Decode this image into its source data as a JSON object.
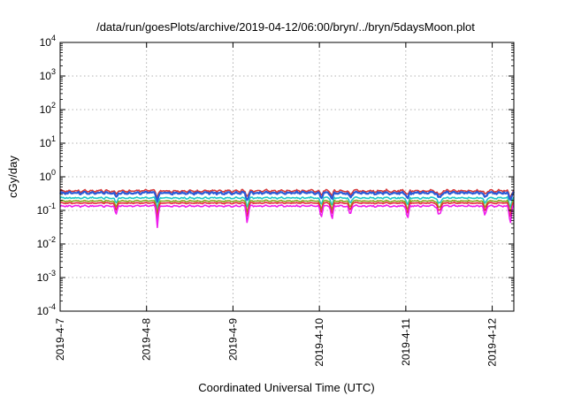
{
  "chart_data": {
    "type": "line",
    "title": "/data/run/goesPlots/archive/2019-04-12/06:00/bryn/../bryn/5daysMoon.plot",
    "xlabel": "Coordinated Universal Time (UTC)",
    "ylabel": "cGy/day",
    "y_scale": "log",
    "ylim": [
      0.0001,
      10000
    ],
    "y_ticks": [
      {
        "base": "10",
        "exp": "-4"
      },
      {
        "base": "10",
        "exp": "-3"
      },
      {
        "base": "10",
        "exp": "-2"
      },
      {
        "base": "10",
        "exp": "-1"
      },
      {
        "base": "10",
        "exp": "0"
      },
      {
        "base": "10",
        "exp": "1"
      },
      {
        "base": "10",
        "exp": "2"
      },
      {
        "base": "10",
        "exp": "3"
      },
      {
        "base": "10",
        "exp": "4"
      }
    ],
    "x_ticks": [
      "2019-4-7",
      "2019-4-8",
      "2019-4-9",
      "2019-4-10",
      "2019-4-11",
      "2019-4-12"
    ],
    "xlim": [
      "2019-04-07T00:00",
      "2019-04-12T06:00"
    ],
    "grid": true,
    "series": [
      {
        "color": "#d63a3a",
        "level": 0.38,
        "noise": 0.045
      },
      {
        "color": "#2a5ad8",
        "level": 0.33,
        "noise": 0.045
      },
      {
        "color": "#1ec8c8",
        "level": 0.235,
        "noise": 0.03
      },
      {
        "color": "#8aa61e",
        "level": 0.19,
        "noise": 0.025
      },
      {
        "color": "#e8283c",
        "level": 0.165,
        "noise": 0.02
      },
      {
        "color": "#ee1cee",
        "level": 0.135,
        "noise": 0.03
      }
    ],
    "dips": [
      {
        "t": "2019-04-07T15:30",
        "depth": 0.45
      },
      {
        "t": "2019-04-08T03:00",
        "depth": 0.7
      },
      {
        "t": "2019-04-09T04:00",
        "depth": 0.7
      },
      {
        "t": "2019-04-10T00:30",
        "depth": 0.55
      },
      {
        "t": "2019-04-10T03:30",
        "depth": 0.6
      },
      {
        "t": "2019-04-10T08:30",
        "depth": 0.45
      },
      {
        "t": "2019-04-11T00:30",
        "depth": 0.6
      },
      {
        "t": "2019-04-11T09:00",
        "depth": 0.3
      },
      {
        "t": "2019-04-11T09:30",
        "depth": 0.4
      },
      {
        "t": "2019-04-11T22:00",
        "depth": 0.5
      },
      {
        "t": "2019-04-12T05:00",
        "depth": 0.7
      }
    ]
  }
}
